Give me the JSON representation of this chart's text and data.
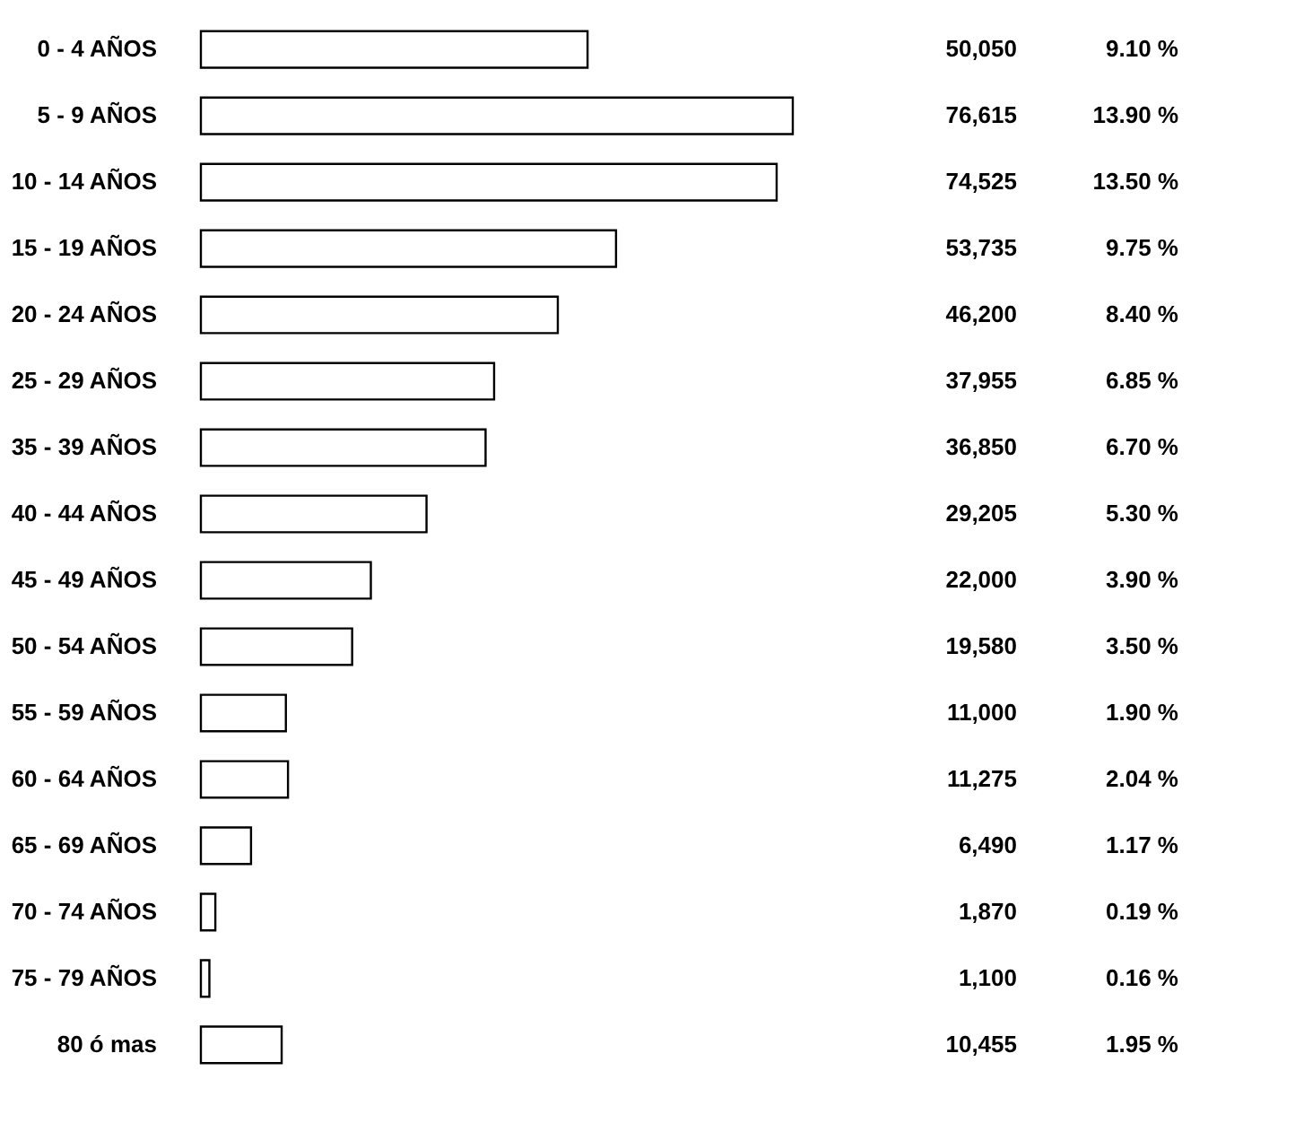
{
  "chart_data": {
    "type": "bar",
    "orientation": "horizontal",
    "categories": [
      "0 - 4 AÑOS",
      "5 - 9 AÑOS",
      "10 - 14 AÑOS",
      "15 - 19 AÑOS",
      "20 - 24 AÑOS",
      "25 - 29 AÑOS",
      "35 - 39 AÑOS",
      "40 - 44 AÑOS",
      "45 - 49 AÑOS",
      "50 - 54 AÑOS",
      "55 - 59 AÑOS",
      "60 - 64 AÑOS",
      "65 - 69 AÑOS",
      "70 - 74 AÑOS",
      "75 - 79 AÑOS",
      "80 ó mas"
    ],
    "values": [
      50050,
      76615,
      74525,
      53735,
      46200,
      37955,
      36850,
      29205,
      22000,
      19580,
      11000,
      11275,
      6490,
      1870,
      1100,
      10455
    ],
    "value_labels": [
      "50,050",
      "76,615",
      "74,525",
      "53,735",
      "46,200",
      "37,955",
      "36,850",
      "29,205",
      "22,000",
      "19,580",
      "11,000",
      "11,275",
      "6,490",
      "1,870",
      "1,100",
      "10,455"
    ],
    "color": "#ffffff",
    "annotations": [
      "9.10 %",
      "13.90 %",
      "13.50 %",
      "9.75 %",
      "8.40 %",
      "6.85 %",
      "6.70 %",
      "5.30 %",
      "3.90 %",
      "3.50 %",
      "1.90 %",
      "2.04 %",
      "1.17 %",
      "0.19 %",
      "0.16 %",
      "1.95 %"
    ],
    "grid": false
  }
}
